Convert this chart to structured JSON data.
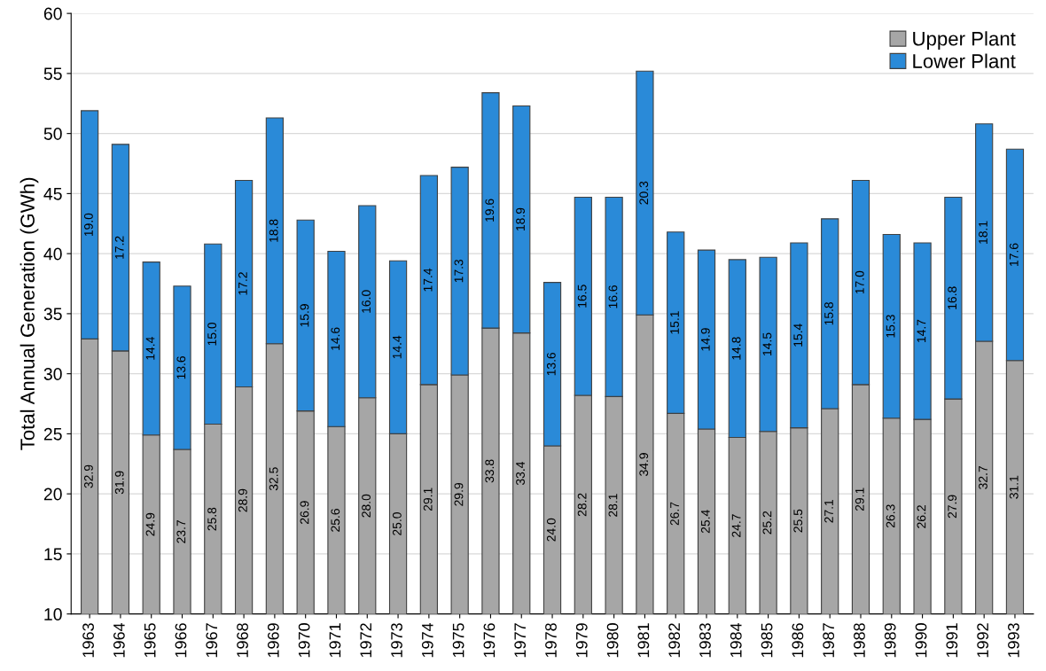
{
  "chart_data": {
    "type": "bar",
    "stacked": true,
    "ylabel": "Total Annual Generation (GWh)",
    "categories": [
      "1963",
      "1964",
      "1965",
      "1966",
      "1967",
      "1968",
      "1969",
      "1970",
      "1971",
      "1972",
      "1973",
      "1974",
      "1975",
      "1976",
      "1977",
      "1978",
      "1979",
      "1980",
      "1981",
      "1982",
      "1983",
      "1984",
      "1985",
      "1986",
      "1987",
      "1988",
      "1989",
      "1990",
      "1991",
      "1992",
      "1993"
    ],
    "series": [
      {
        "name": "Upper Plant",
        "color": "#a6a6a6",
        "values": [
          32.9,
          31.9,
          24.9,
          23.7,
          25.8,
          28.9,
          32.5,
          26.9,
          25.6,
          28.0,
          25.0,
          29.1,
          29.9,
          33.8,
          33.4,
          24.0,
          28.2,
          28.1,
          34.9,
          26.7,
          25.4,
          24.7,
          25.2,
          25.5,
          27.1,
          29.1,
          26.3,
          26.2,
          27.9,
          32.7,
          31.1
        ],
        "value_labels": [
          "32.9",
          "31.9",
          "24.9",
          "23.7",
          "25.8",
          "28.9",
          "32.5",
          "26.9",
          "25.6",
          "28.0",
          "25.0",
          "29.1",
          "29.9",
          "33.8",
          "33.4",
          "24.0",
          "28.2",
          "28.1",
          "34.9",
          "26.7",
          "25.4",
          "24.7",
          "25.2",
          "25.5",
          "27.1",
          "29.1",
          "26.3",
          "26.2",
          "27.9",
          "32.7",
          "31.1"
        ]
      },
      {
        "name": "Lower Plant",
        "color": "#2a8ad8",
        "values": [
          19.0,
          17.2,
          14.4,
          13.6,
          15.0,
          17.2,
          18.8,
          15.9,
          14.6,
          16.0,
          14.4,
          17.4,
          17.3,
          19.6,
          18.9,
          13.6,
          16.5,
          16.6,
          20.3,
          15.1,
          14.9,
          14.8,
          14.5,
          15.4,
          15.8,
          17.0,
          15.3,
          14.7,
          16.8,
          18.1,
          17.6
        ],
        "value_labels": [
          "19.0",
          "17.2",
          "14.4",
          "13.6",
          "15.0",
          "17.2",
          "18.8",
          "15.9",
          "14.6",
          "16.0",
          "14.4",
          "17.4",
          "17.3",
          "19.6",
          "18.9",
          "13.6",
          "16.5",
          "16.6",
          "20.3",
          "15.1",
          "14.9",
          "14.8",
          "14.5",
          "15.4",
          "15.8",
          "17.0",
          "15.3",
          "14.7",
          "16.8",
          "18.1",
          "17.6"
        ]
      }
    ],
    "ylim": [
      10,
      60
    ],
    "yticks": [
      10,
      15,
      20,
      25,
      30,
      35,
      40,
      45,
      50,
      55,
      60
    ],
    "grid": "y",
    "legend": "top right"
  }
}
